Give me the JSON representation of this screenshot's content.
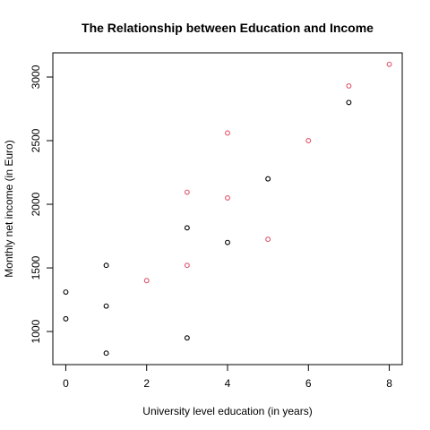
{
  "chart_data": {
    "type": "scatter",
    "title": "The Relationship between Education and Income",
    "xlabel": "University level education (in years)",
    "ylabel": "Monthly net income (in Euro)",
    "xlim": [
      -0.32,
      8.32
    ],
    "ylim": [
      740,
      3190
    ],
    "x_ticks": [
      "0",
      "2",
      "4",
      "6",
      "8"
    ],
    "y_ticks": [
      "1000",
      "1500",
      "2000",
      "2500",
      "3000"
    ],
    "grid": false,
    "legend": "none",
    "series": [
      {
        "color": "#000000",
        "points": [
          {
            "x": 0,
            "y": 1310
          },
          {
            "x": 0,
            "y": 1100
          },
          {
            "x": 1,
            "y": 1520
          },
          {
            "x": 1,
            "y": 1200
          },
          {
            "x": 1,
            "y": 830
          },
          {
            "x": 3,
            "y": 1815
          },
          {
            "x": 3,
            "y": 950
          },
          {
            "x": 4,
            "y": 1700
          },
          {
            "x": 5,
            "y": 2200
          },
          {
            "x": 7,
            "y": 2800
          }
        ]
      },
      {
        "color": "#DF536B",
        "points": [
          {
            "x": 2,
            "y": 1400
          },
          {
            "x": 3,
            "y": 2095
          },
          {
            "x": 3,
            "y": 1520
          },
          {
            "x": 4,
            "y": 2560
          },
          {
            "x": 4,
            "y": 2050
          },
          {
            "x": 5,
            "y": 1725
          },
          {
            "x": 6,
            "y": 2500
          },
          {
            "x": 7,
            "y": 2930
          },
          {
            "x": 8,
            "y": 3100
          }
        ]
      }
    ]
  }
}
